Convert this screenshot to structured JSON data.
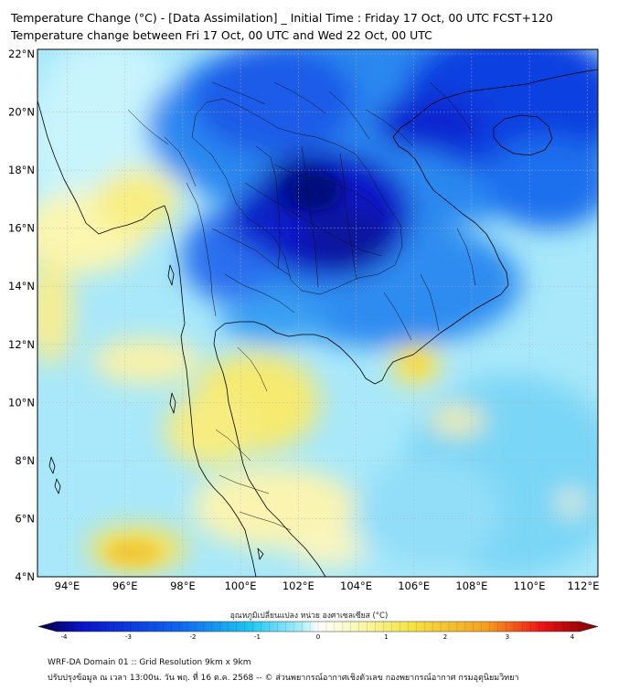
{
  "header": {
    "title_line1": "Temperature Change (°C) - [Data Assimilation] _ Initial Time : Friday 17 Oct, 00 UTC FCST+120",
    "title_line2": "Temperature change between Fri 17 Oct, 00 UTC and Wed 22 Oct, 00 UTC"
  },
  "map": {
    "lat_labels": [
      "22°N",
      "20°N",
      "18°N",
      "16°N",
      "14°N",
      "12°N",
      "10°N",
      "8°N",
      "6°N",
      "4°N"
    ],
    "lon_labels": [
      "94°E",
      "96°E",
      "98°E",
      "100°E",
      "102°E",
      "104°E",
      "106°E",
      "108°E",
      "110°E",
      "112°E"
    ],
    "lat_range": [
      4,
      22
    ],
    "lon_range": [
      93,
      112.4
    ]
  },
  "colorbar": {
    "caption": "อุณหภูมิเปลี่ยนแปลง หน่วย องศาเซลเซียส (°C)",
    "min": -4,
    "max": 4,
    "ticks": [
      "-4",
      "-3",
      "-2",
      "-1",
      "0",
      "1",
      "2",
      "3",
      "4"
    ],
    "colors": {
      "cold_extreme": "#05013f",
      "cold_deep": "#0a14c8",
      "cold_mid": "#0f64f0",
      "cold_light": "#1ec8f0",
      "cool_pale": "#aaeefa",
      "neutral": "#ffffff",
      "warm_pale": "#fafac0",
      "warm_light": "#f5e646",
      "warm_mid": "#f5a01e",
      "hot": "#eb1414",
      "hot_extreme": "#780000"
    }
  },
  "footer": {
    "line1": "WRF-DA Domain 01 :: Grid Resolution 9km x 9km",
    "line2": "ปรับปรุงข้อมูล ณ เวลา 13:00น. วัน พฤ. ที่ 16 ต.ค. 2568 -- © ส่วนพยากรณ์อากาศเชิงตัวเลข กองพยากรณ์อากาศ กรมอุตุนิยมวิทยา"
  }
}
